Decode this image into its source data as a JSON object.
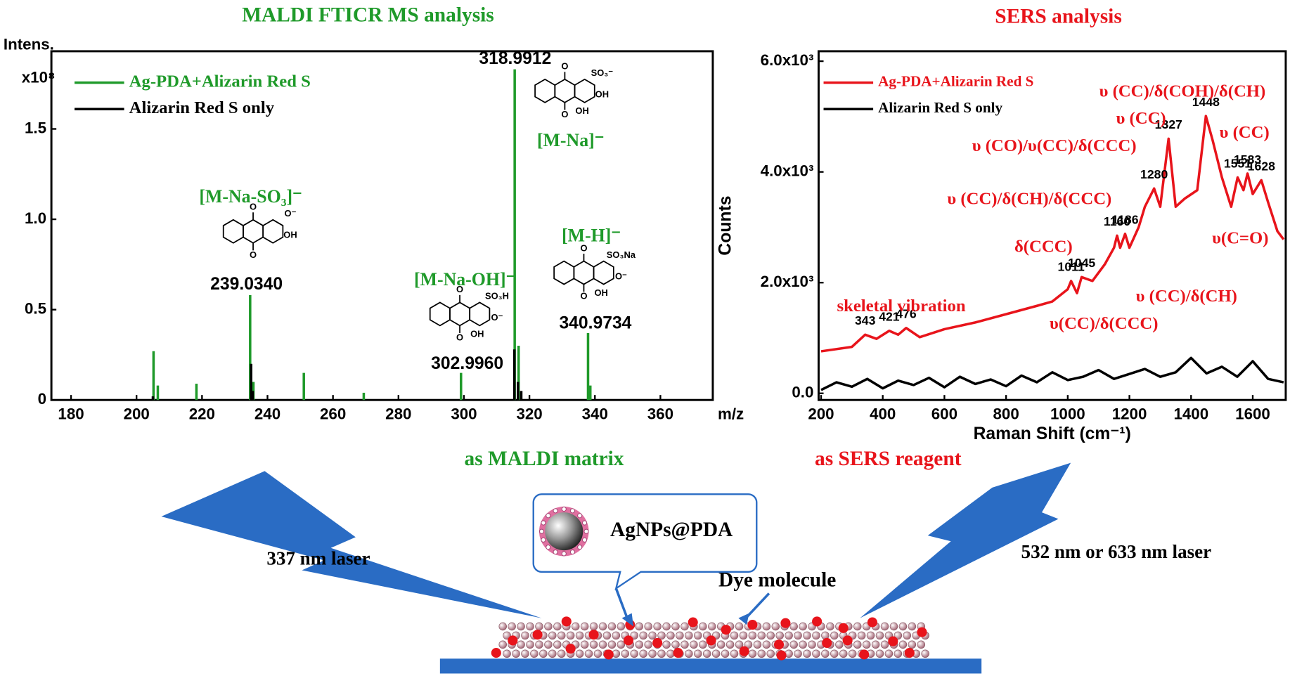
{
  "chart_data": [
    {
      "type": "stick",
      "title": "MALDI FTICR MS analysis",
      "y_label": "Intens.",
      "y_unit": "x10⁸",
      "x_label": "m/z",
      "xlim": [
        174,
        376
      ],
      "xticks": [
        180,
        200,
        220,
        240,
        260,
        280,
        300,
        320,
        340,
        360
      ],
      "ylim": [
        0,
        1.93
      ],
      "yticks": [
        0,
        0.5,
        {
          "value": 1,
          "label": "1.0"
        },
        1.5
      ],
      "legend": "upper left",
      "series": [
        {
          "name": "Ag-PDA+Alizarin Red S",
          "color": "#1f9a2a",
          "x": [
            205.2,
            206.5,
            218.3,
            234.7,
            235.7,
            251.1,
            269.4,
            299.1,
            315.5,
            316.7,
            337.9,
            338.6
          ],
          "values": [
            0.27,
            0.08,
            0.09,
            0.58,
            0.1,
            0.15,
            0.04,
            0.15,
            1.83,
            0.3,
            0.37,
            0.08
          ]
        },
        {
          "name": "Alizarin Red S only",
          "color": "#000000",
          "x": [
            205,
            235,
            235.5,
            315.4,
            316.5,
            317.5
          ],
          "values": [
            0.02,
            0.2,
            0.05,
            0.28,
            0.1,
            0.05
          ]
        }
      ],
      "annotations": [
        "318.9912",
        "[M-Na]⁻",
        "[M-Na-SO₃]⁻",
        "239.0340",
        "[M-H]⁻",
        "340.9734",
        "[M-Na-OH]⁻",
        "302.9960"
      ],
      "structures": [
        {
          "labels": [
            "O",
            "O",
            "SO₃⁻",
            "OH",
            "OH"
          ]
        },
        {
          "labels": [
            "O",
            "O",
            "O⁻",
            "OH"
          ]
        },
        {
          "labels": [
            "O",
            "O",
            "SO₃Na",
            "O⁻",
            "OH"
          ]
        },
        {
          "labels": [
            "O",
            "O",
            "SO₃H",
            "O⁻",
            "OH"
          ]
        }
      ]
    },
    {
      "type": "line",
      "title": "SERS  analysis",
      "x_label": "Raman Shift (cm⁻¹)",
      "y_label": "Counts",
      "xlim": [
        192,
        1707
      ],
      "xticks": [
        200,
        400,
        600,
        800,
        1000,
        1200,
        1400,
        1600
      ],
      "ylim": [
        -120,
        6180
      ],
      "yticks": [
        {
          "value": 0,
          "label": "0.0"
        },
        {
          "value": 2000,
          "label": "2.0x10³"
        },
        {
          "value": 4000,
          "label": "4.0x10³"
        },
        {
          "value": 6000,
          "label": "6.0x10³"
        }
      ],
      "legend": "upper left",
      "series": [
        {
          "name": "Ag-PDA+Alizarin Red S",
          "color": "#e8141b",
          "x": [
            200,
            300,
            343,
            380,
            421,
            450,
            476,
            520,
            600,
            700,
            800,
            900,
            950,
            1000,
            1011,
            1030,
            1045,
            1080,
            1120,
            1150,
            1160,
            1170,
            1186,
            1200,
            1230,
            1250,
            1280,
            1300,
            1327,
            1350,
            1380,
            1420,
            1448,
            1470,
            1500,
            1530,
            1551,
            1570,
            1583,
            1600,
            1628,
            1650,
            1680,
            1700
          ],
          "values": [
            760,
            840,
            1060,
            985,
            1130,
            1060,
            1180,
            1015,
            1160,
            1280,
            1430,
            1580,
            1660,
            1880,
            2030,
            1810,
            2100,
            2030,
            2330,
            2630,
            2850,
            2630,
            2880,
            2630,
            3000,
            3370,
            3700,
            3370,
            4600,
            3370,
            3520,
            3670,
            5010,
            4570,
            3900,
            3370,
            3900,
            3670,
            3970,
            3600,
            3850,
            3450,
            2930,
            2780
          ]
        },
        {
          "name": "Alizarin Red S only",
          "color": "#000000",
          "x": [
            200,
            250,
            300,
            350,
            400,
            450,
            500,
            550,
            600,
            650,
            700,
            750,
            800,
            850,
            900,
            950,
            1000,
            1050,
            1100,
            1150,
            1200,
            1250,
            1300,
            1350,
            1400,
            1450,
            1500,
            1550,
            1600,
            1650,
            1700
          ],
          "values": [
            60,
            200,
            120,
            260,
            90,
            230,
            150,
            280,
            110,
            300,
            170,
            250,
            130,
            320,
            200,
            380,
            240,
            300,
            420,
            260,
            350,
            440,
            300,
            380,
            640,
            360,
            480,
            300,
            580,
            260,
            200
          ]
        }
      ],
      "peaks": [
        343,
        421,
        476,
        1011,
        1045,
        1160,
        1186,
        1280,
        1327,
        1448,
        1551,
        1583,
        1628
      ],
      "annotations": [
        "υ (CC)/δ(COH)/δ(CH)",
        "υ (CC)",
        "υ (CO)/υ(CC)/δ(CCC)",
        "υ (CC)",
        "υ (CC)/δ(CH)/δ(CCC)",
        "δ(CCC)",
        "υ (CC)/δ(CH)",
        "υ(C=O)",
        "skeletal vibration",
        "υ(CC)/δ(CCC)"
      ]
    }
  ],
  "diagram": {
    "maldi_role": "as MALDI matrix",
    "sers_role": "as SERS reagent",
    "laser_left": "337 nm laser",
    "laser_right": "532 nm or 633 nm laser",
    "particle": "AgNPs@PDA",
    "dye": "Dye molecule"
  }
}
